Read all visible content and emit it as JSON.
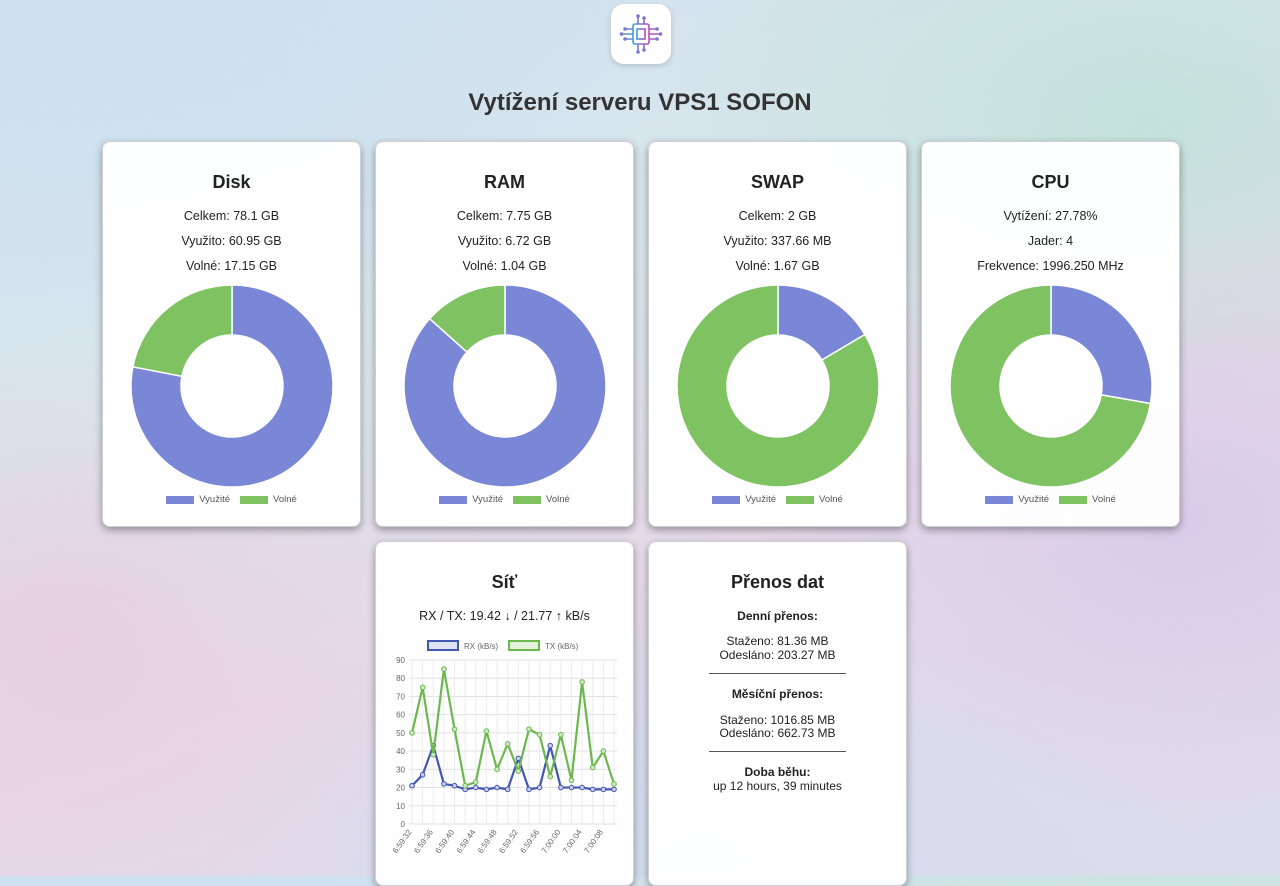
{
  "header": {
    "title": "Vytížení serveru VPS1 SOFON",
    "logo_icon": "chip-circuit-icon"
  },
  "colors": {
    "used": "#7a86d6",
    "free": "#7fc262",
    "rx": "#4257b2",
    "tx": "#6cb84f"
  },
  "legend": {
    "used": "Využité",
    "free": "Volné"
  },
  "cards": {
    "disk": {
      "title": "Disk",
      "line1": "Celkem: 78.1 GB",
      "line2": "Využito: 60.95 GB",
      "line3": "Volné: 17.15 GB"
    },
    "ram": {
      "title": "RAM",
      "line1": "Celkem: 7.75 GB",
      "line2": "Využito: 6.72 GB",
      "line3": "Volné: 1.04 GB"
    },
    "swap": {
      "title": "SWAP",
      "line1": "Celkem: 2 GB",
      "line2": "Využito: 337.66 MB",
      "line3": "Volné: 1.67 GB"
    },
    "cpu": {
      "title": "CPU",
      "line1": "Vytížení: 27.78%",
      "line2": "Jader: 4",
      "line3": "Frekvence: 1996.250 MHz"
    },
    "net": {
      "title": "Síť",
      "summary": "RX / TX: 19.42 ↓ / 21.77 ↑ kB/s"
    },
    "transfer": {
      "title": "Přenos dat",
      "daily_heading": "Denní přenos:",
      "daily_down": "Staženo: 81.36 MB",
      "daily_up": "Odesláno: 203.27 MB",
      "monthly_heading": "Měsíční přenos:",
      "monthly_down": "Staženo: 1016.85 MB",
      "monthly_up": "Odesláno: 662.73 MB",
      "uptime_heading": "Doba běhu:",
      "uptime_value": "up 12 hours, 39 minutes"
    }
  },
  "chart_data": [
    {
      "type": "pie",
      "title": "Disk",
      "labels": [
        "Využité",
        "Volné"
      ],
      "values": [
        60.95,
        17.15
      ]
    },
    {
      "type": "pie",
      "title": "RAM",
      "labels": [
        "Využité",
        "Volné"
      ],
      "values": [
        6.72,
        1.04
      ]
    },
    {
      "type": "pie",
      "title": "SWAP",
      "labels": [
        "Využité",
        "Volné"
      ],
      "values": [
        337.66,
        1710.34
      ]
    },
    {
      "type": "pie",
      "title": "CPU",
      "labels": [
        "Využité",
        "Volné"
      ],
      "values": [
        27.78,
        72.22
      ]
    },
    {
      "type": "line",
      "ylim": [
        0,
        90
      ],
      "yticks": [
        0,
        10,
        20,
        30,
        40,
        50,
        60,
        70,
        80,
        90
      ],
      "x": [
        "6:59:32",
        "6:59:34",
        "6:59:36",
        "6:59:38",
        "6:59:40",
        "6:59:42",
        "6:59:44",
        "6:59:46",
        "6:59:48",
        "6:59:50",
        "6:59:52",
        "6:59:54",
        "6:59:56",
        "6:59:58",
        "7:00:00",
        "7:00:02",
        "7:00:04",
        "7:00:06",
        "7:00:08",
        "7:00:10"
      ],
      "xtick_labels": [
        "6:59:32",
        "6:59:36",
        "6:59:40",
        "6:59:44",
        "6:59:48",
        "6:59:52",
        "6:59:56",
        "7:00:00",
        "7:00:04",
        "7:00:08"
      ],
      "series": [
        {
          "name": "RX (kB/s)",
          "values": [
            21,
            27,
            43,
            22,
            21,
            19,
            20,
            19,
            20,
            19,
            36,
            19,
            20,
            43,
            20,
            20,
            20,
            19,
            19,
            19
          ]
        },
        {
          "name": "TX (kB/s)",
          "values": [
            50,
            75,
            38,
            85,
            52,
            21,
            23,
            51,
            30,
            44,
            29,
            52,
            49,
            26,
            49,
            24,
            78,
            31,
            40,
            22
          ]
        }
      ]
    }
  ]
}
